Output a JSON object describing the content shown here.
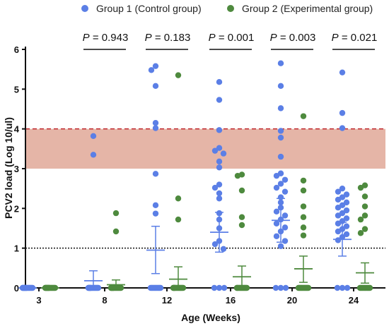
{
  "chart_data": {
    "type": "scatter",
    "xlabel": "Age (Weeks)",
    "ylabel": "PCV2 load (Log 10/ul)",
    "ylim": [
      0,
      6
    ],
    "yticks": [
      "0",
      "1",
      "2",
      "3",
      "4",
      "5",
      "6"
    ],
    "categories": [
      "3",
      "8",
      "12",
      "16",
      "20",
      "24"
    ],
    "legend_position": "top",
    "series": [
      {
        "name": "Group 1 (Control group)",
        "color": "#5b7fe6",
        "points": [
          {
            "category": "3",
            "values": [
              0,
              0,
              0,
              0,
              0,
              0,
              0,
              0,
              0,
              0,
              0,
              0,
              0,
              0,
              0,
              0,
              0,
              0,
              0,
              0
            ]
          },
          {
            "category": "8",
            "values": [
              3.82,
              3.35,
              0,
              0,
              0,
              0,
              0,
              0,
              0,
              0,
              0,
              0,
              0,
              0,
              0,
              0,
              0,
              0,
              0,
              0
            ]
          },
          {
            "category": "12",
            "values": [
              5.58,
              5.48,
              5.08,
              4.15,
              4.02,
              2.87,
              2.08,
              1.87,
              0,
              0,
              0,
              0,
              0,
              0,
              0,
              0,
              0,
              0,
              0,
              0
            ]
          },
          {
            "category": "16",
            "values": [
              5.18,
              4.73,
              3.97,
              3.52,
              3.45,
              3.38,
              3.18,
              3.03,
              2.6,
              2.52,
              2.38,
              2.25,
              1.88,
              1.72,
              1.5,
              1.18,
              1.1,
              0.98,
              0,
              0,
              0
            ]
          },
          {
            "category": "20",
            "values": [
              5.65,
              5.08,
              4.52,
              3.95,
              3.78,
              3.3,
              2.88,
              2.82,
              2.72,
              2.62,
              2.52,
              2.42,
              2.28,
              2.15,
              2.02,
              1.92,
              1.82,
              1.72,
              1.62,
              1.52,
              1.42,
              1.3,
              1.18,
              1.05,
              0,
              0,
              0
            ]
          },
          {
            "category": "24",
            "values": [
              5.42,
              4.4,
              4.02,
              2.5,
              2.42,
              2.35,
              2.28,
              2.22,
              2.15,
              2.08,
              2.02,
              1.95,
              1.88,
              1.82,
              1.75,
              1.68,
              1.62,
              1.55,
              1.48,
              1.42,
              1.35,
              1.28,
              1.2,
              0,
              0,
              0
            ]
          }
        ],
        "means": [
          0,
          0.18,
          0.95,
          1.4,
          1.7,
          1.22
        ],
        "errors": [
          [
            0,
            0
          ],
          [
            0.05,
            0.43
          ],
          [
            0.36,
            1.55
          ],
          [
            0.9,
            1.9
          ],
          [
            1.15,
            2.25
          ],
          [
            0.8,
            1.65
          ]
        ]
      },
      {
        "name": "Group 2 (Experimental group)",
        "color": "#4e8a3e",
        "points": [
          {
            "category": "3",
            "values": [
              0,
              0,
              0,
              0,
              0,
              0,
              0,
              0,
              0,
              0,
              0,
              0,
              0,
              0,
              0,
              0,
              0,
              0,
              0,
              0
            ]
          },
          {
            "category": "8",
            "values": [
              1.88,
              1.42,
              0,
              0,
              0,
              0,
              0,
              0,
              0,
              0,
              0,
              0,
              0,
              0,
              0,
              0,
              0,
              0,
              0,
              0
            ]
          },
          {
            "category": "12",
            "values": [
              5.35,
              2.25,
              1.72,
              0,
              0,
              0,
              0,
              0,
              0,
              0,
              0,
              0,
              0,
              0,
              0,
              0,
              0,
              0,
              0,
              0
            ]
          },
          {
            "category": "16",
            "values": [
              2.85,
              2.82,
              2.45,
              1.78,
              1.58,
              0,
              0,
              0,
              0,
              0,
              0,
              0,
              0,
              0,
              0,
              0,
              0,
              0,
              0,
              0
            ]
          },
          {
            "category": "20",
            "values": [
              4.32,
              2.7,
              2.45,
              2.05,
              1.78,
              1.52,
              1.32,
              0,
              0,
              0,
              0,
              0,
              0,
              0,
              0,
              0,
              0,
              0,
              0,
              0
            ]
          },
          {
            "category": "24",
            "values": [
              2.58,
              2.52,
              2.3,
              2.05,
              1.82,
              1.72,
              1.48,
              1.38,
              0,
              0,
              0,
              0,
              0,
              0,
              0,
              0,
              0,
              0,
              0,
              0
            ]
          }
        ],
        "means": [
          0,
          0.08,
          0.22,
          0.28,
          0.48,
          0.38
        ],
        "errors": [
          [
            0,
            0
          ],
          [
            0,
            0.2
          ],
          [
            0,
            0.53
          ],
          [
            0,
            0.55
          ],
          [
            0.14,
            0.8
          ],
          [
            0.12,
            0.63
          ]
        ]
      }
    ],
    "threshold_band": {
      "from": 3,
      "to": 4,
      "color": "#e0a898"
    },
    "reference_lines": [
      {
        "y": 4,
        "style": "dashed",
        "color": "#c0272d"
      },
      {
        "y": 1,
        "style": "dotted",
        "color": "#111111"
      }
    ],
    "annotations": [
      {
        "category": "8",
        "label": "P = 0.943"
      },
      {
        "category": "12",
        "label": "P = 0.183"
      },
      {
        "category": "16",
        "label": "P = 0.001"
      },
      {
        "category": "20",
        "label": "P = 0.003"
      },
      {
        "category": "24",
        "label": "P = 0.021"
      }
    ]
  }
}
